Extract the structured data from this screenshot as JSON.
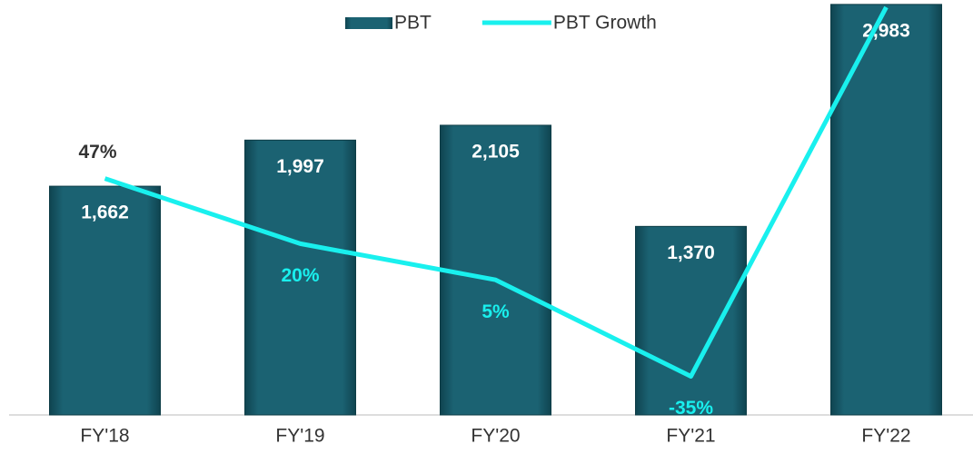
{
  "chart_data": {
    "type": "bar-line",
    "categories": [
      "FY'18",
      "FY'19",
      "FY'20",
      "FY'21",
      "FY'22"
    ],
    "series": [
      {
        "name": "PBT",
        "type": "bar",
        "color": "#1b6272",
        "values": [
          1662,
          1997,
          2105,
          1370,
          2983
        ],
        "value_labels": [
          "1,662",
          "1,997",
          "2,105",
          "1,370",
          "2,983"
        ]
      },
      {
        "name": "PBT Growth",
        "type": "line",
        "axis": "y2",
        "color": "#19f0ee",
        "values": [
          47,
          20,
          5,
          -35,
          118
        ],
        "value_labels": [
          "47%",
          "20%",
          "5%",
          "-35%",
          null
        ]
      }
    ],
    "ylim": [
      0,
      3015
    ],
    "y2lim": [
      -51,
      121
    ],
    "legend": "top"
  }
}
